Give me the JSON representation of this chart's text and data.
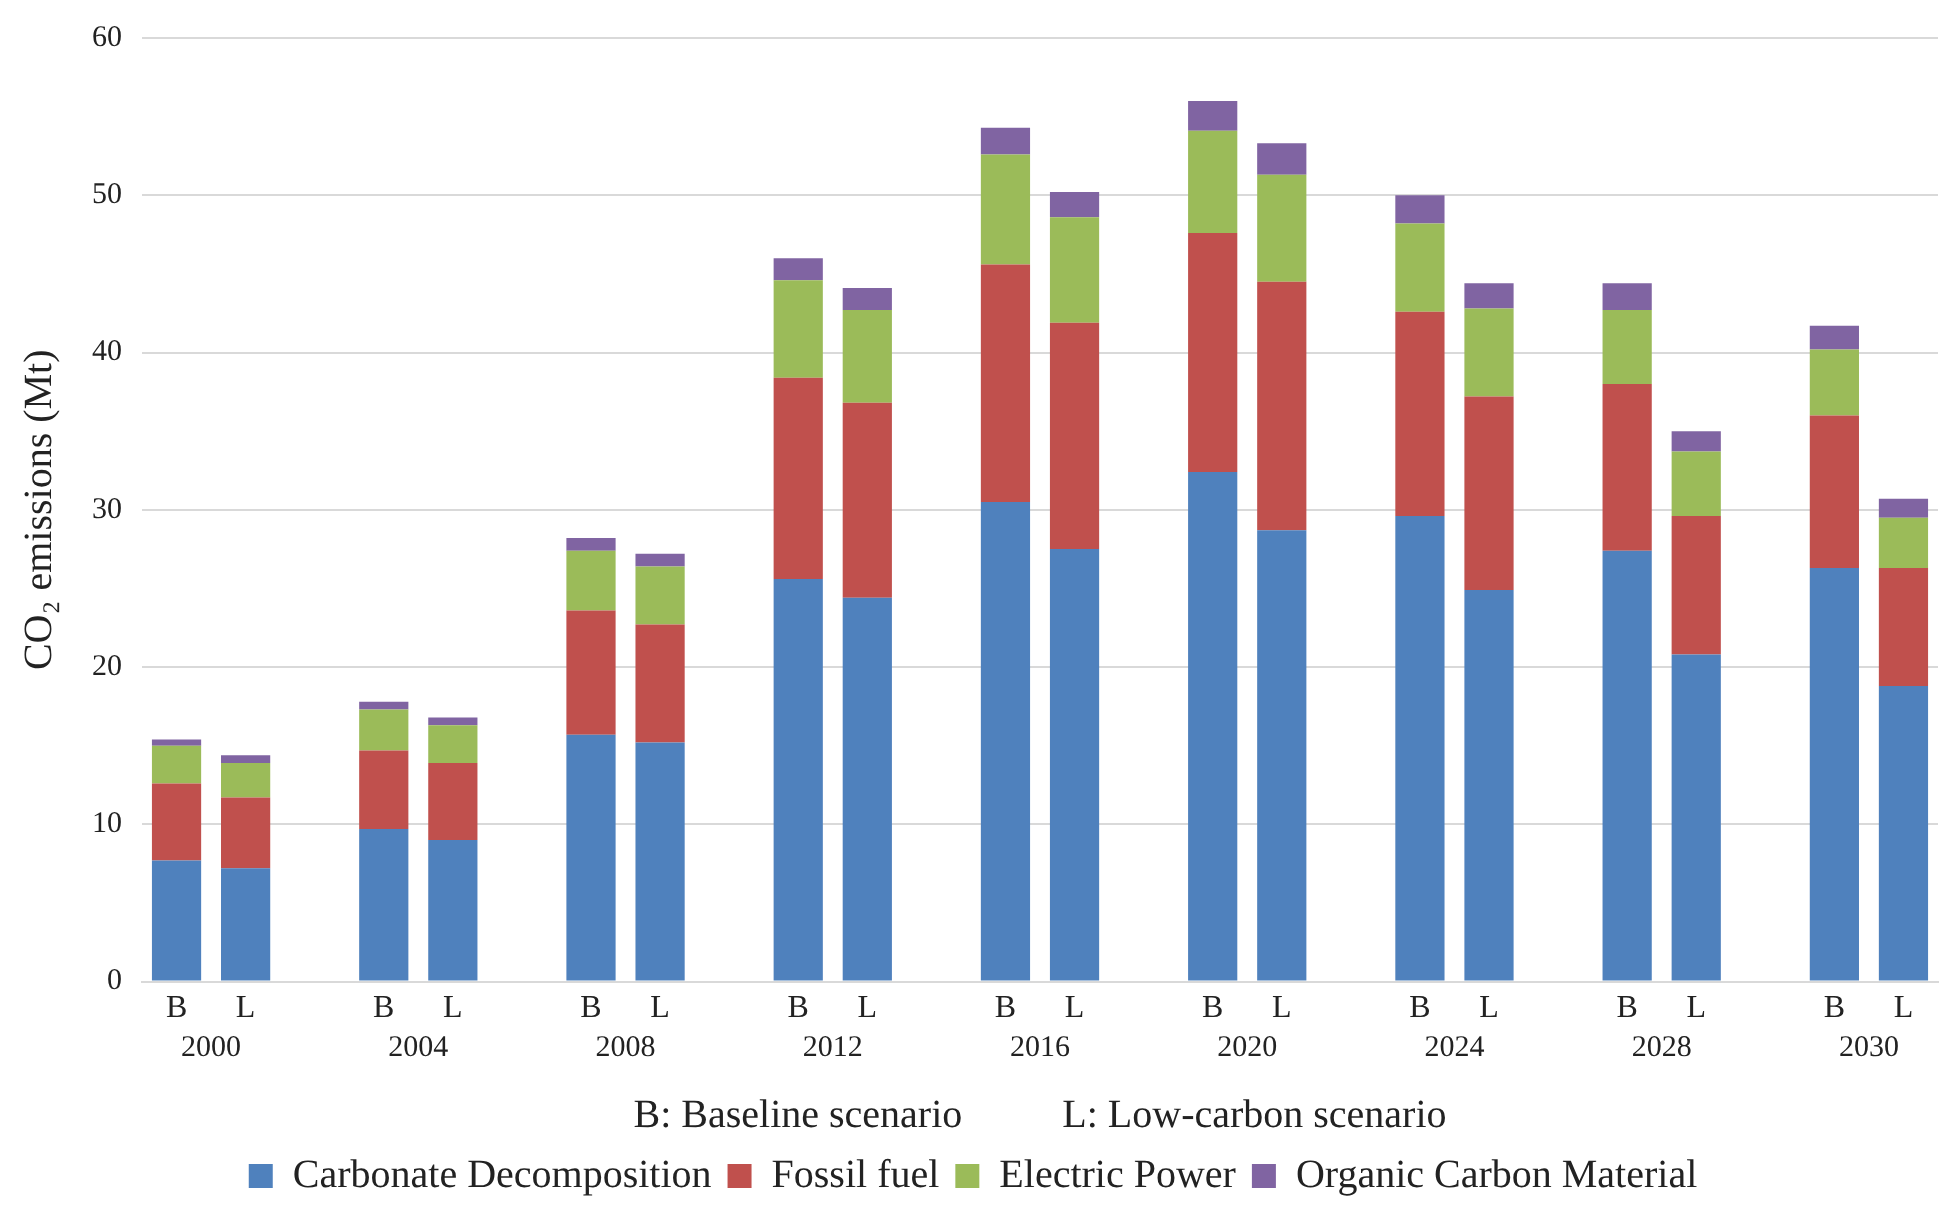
{
  "chart_data": {
    "type": "bar",
    "stacked": true,
    "ylabel": "CO₂ emissions (Mt)",
    "xlabel": "B: Baseline scenario          L: Low-carbon scenario",
    "categories": [
      "B",
      "L",
      null,
      "B",
      "L",
      null,
      "B",
      "L",
      null,
      "B",
      "L",
      null,
      "B",
      "L",
      null,
      "B",
      "L",
      null,
      "B",
      "L",
      null,
      "B",
      "L",
      null,
      "B",
      "L"
    ],
    "series": [
      {
        "name": "Carbonate Decomposition",
        "color": "#4f81bd",
        "values": [
          7.7,
          7.2,
          null,
          9.7,
          9.0,
          null,
          15.7,
          15.2,
          null,
          25.6,
          24.4,
          null,
          30.5,
          27.5,
          null,
          32.4,
          28.7,
          null,
          29.6,
          24.9,
          null,
          27.4,
          20.8,
          null,
          26.3,
          18.8
        ]
      },
      {
        "name": "Fossil fuel",
        "color": "#c0504d",
        "values": [
          4.9,
          4.5,
          null,
          5.0,
          4.9,
          null,
          7.9,
          7.5,
          null,
          12.8,
          12.4,
          null,
          15.1,
          14.4,
          null,
          15.2,
          15.8,
          null,
          13.0,
          12.3,
          null,
          10.6,
          8.8,
          null,
          9.7,
          7.5
        ]
      },
      {
        "name": "Electric Power",
        "color": "#9bbb59",
        "values": [
          2.4,
          2.2,
          null,
          2.6,
          2.4,
          null,
          3.8,
          3.7,
          null,
          6.2,
          5.9,
          null,
          7.0,
          6.7,
          null,
          6.5,
          6.8,
          null,
          5.6,
          5.6,
          null,
          4.7,
          4.1,
          null,
          4.2,
          3.2
        ]
      },
      {
        "name": "Organic Carbon Material",
        "color": "#8064a2",
        "values": [
          0.4,
          0.5,
          null,
          0.5,
          0.5,
          null,
          0.8,
          0.8,
          null,
          1.4,
          1.4,
          null,
          1.7,
          1.6,
          null,
          1.9,
          2.0,
          null,
          1.8,
          1.6,
          null,
          1.7,
          1.3,
          null,
          1.5,
          1.2
        ]
      }
    ],
    "annotations": [
      "2000",
      "2004",
      "2008",
      "2012",
      "2016",
      "2020",
      "2024",
      "2028",
      "2030"
    ],
    "ylim": [
      0,
      60
    ],
    "yticks": [
      0,
      10,
      20,
      30,
      40,
      50,
      60
    ],
    "grid": "y",
    "legend": "bottom"
  }
}
